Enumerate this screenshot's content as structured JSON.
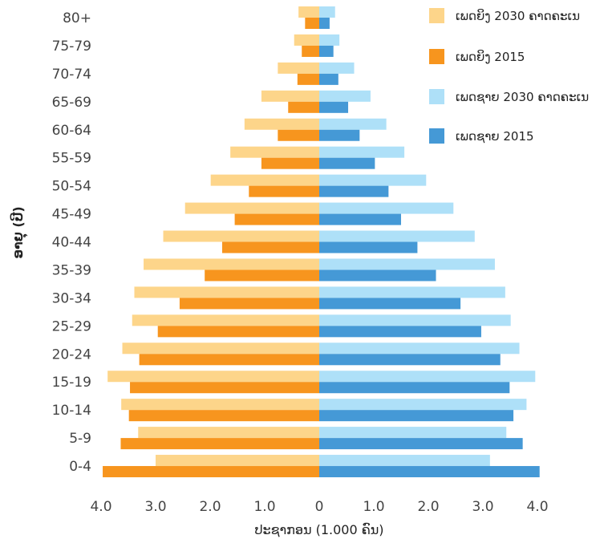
{
  "chart_data": {
    "type": "bar",
    "orientation": "horizontal",
    "layout": "population-pyramid",
    "categories": [
      "80+",
      "75-79",
      "70-74",
      "65-69",
      "60-64",
      "55-59",
      "50-54",
      "45-49",
      "40-44",
      "35-39",
      "30-34",
      "25-29",
      "20-24",
      "15-19",
      "10-14",
      "5-9",
      "0-4"
    ],
    "series": [
      {
        "name": "ເພດຍິງ 2030 ຄາດຄະເນ",
        "side": "left",
        "color": "#FDD58A",
        "values": [
          0.38,
          0.46,
          0.76,
          1.06,
          1.37,
          1.63,
          1.99,
          2.46,
          2.86,
          3.22,
          3.39,
          3.43,
          3.61,
          3.88,
          3.63,
          3.32,
          3.0
        ]
      },
      {
        "name": "ເພດຍິງ 2015",
        "side": "left",
        "color": "#F7951E",
        "values": [
          0.26,
          0.32,
          0.4,
          0.57,
          0.76,
          1.06,
          1.29,
          1.55,
          1.78,
          2.1,
          2.56,
          2.96,
          3.3,
          3.47,
          3.49,
          3.64,
          3.97
        ]
      },
      {
        "name": "ເພດຊາຍ 2030 ຄາດຄະເນ",
        "side": "right",
        "color": "#AEE0F8",
        "values": [
          0.29,
          0.37,
          0.64,
          0.94,
          1.23,
          1.56,
          1.96,
          2.46,
          2.85,
          3.22,
          3.41,
          3.51,
          3.67,
          3.96,
          3.8,
          3.43,
          3.13
        ]
      },
      {
        "name": "ເພດຊາຍ 2015",
        "side": "right",
        "color": "#4599D6",
        "values": [
          0.19,
          0.26,
          0.35,
          0.53,
          0.74,
          1.02,
          1.27,
          1.5,
          1.8,
          2.14,
          2.59,
          2.97,
          3.32,
          3.49,
          3.56,
          3.73,
          4.04
        ]
      }
    ],
    "xlim": [
      -4.0,
      4.0
    ],
    "xticks": [
      -4,
      -3,
      -2,
      -1,
      0,
      1,
      2,
      3,
      4
    ],
    "xtick_labels": [
      "4.0",
      "3.0",
      "2.0",
      "1.0",
      "0",
      "1.0",
      "2.0",
      "3.0",
      "4.0"
    ],
    "xlabel": "ປະຊາກອນ (1.000 ຄົນ)",
    "ylabel": "ອາຍຸ (ປີ)",
    "grid": false,
    "legend_position": "top-right"
  }
}
